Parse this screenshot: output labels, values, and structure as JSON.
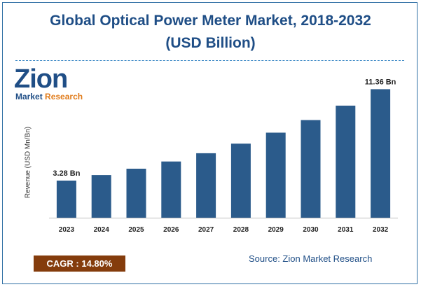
{
  "header": {
    "title_line1": "Global Optical Power Meter Market, 2018-2032",
    "title_line2": "(USD Billion)"
  },
  "logo": {
    "name": "Zion",
    "subtitle_a": "Market",
    "subtitle_b": "Research"
  },
  "footer": {
    "cagr": "CAGR : 14.80%",
    "source": "Source: Zion Market Research"
  },
  "colors": {
    "bar": "#2b5b8b",
    "title": "#1f4e86",
    "cagr_bg": "#843c0c"
  },
  "chart_data": {
    "type": "bar",
    "title": "Global Optical Power Meter Market, 2018-2032",
    "subtitle": "(USD Billion)",
    "xlabel": "",
    "ylabel": "Revenue (USD Mn/Bn)",
    "categories": [
      "2023",
      "2024",
      "2025",
      "2026",
      "2027",
      "2028",
      "2029",
      "2030",
      "2031",
      "2032"
    ],
    "values": [
      3.28,
      3.77,
      4.33,
      4.97,
      5.7,
      6.55,
      7.52,
      8.63,
      9.91,
      11.36
    ],
    "data_labels": [
      {
        "index": 0,
        "text": "3.28 Bn"
      },
      {
        "index": 9,
        "text": "11.36 Bn"
      }
    ],
    "ylim": [
      0,
      12.5
    ],
    "grid": false,
    "legend": "none"
  }
}
